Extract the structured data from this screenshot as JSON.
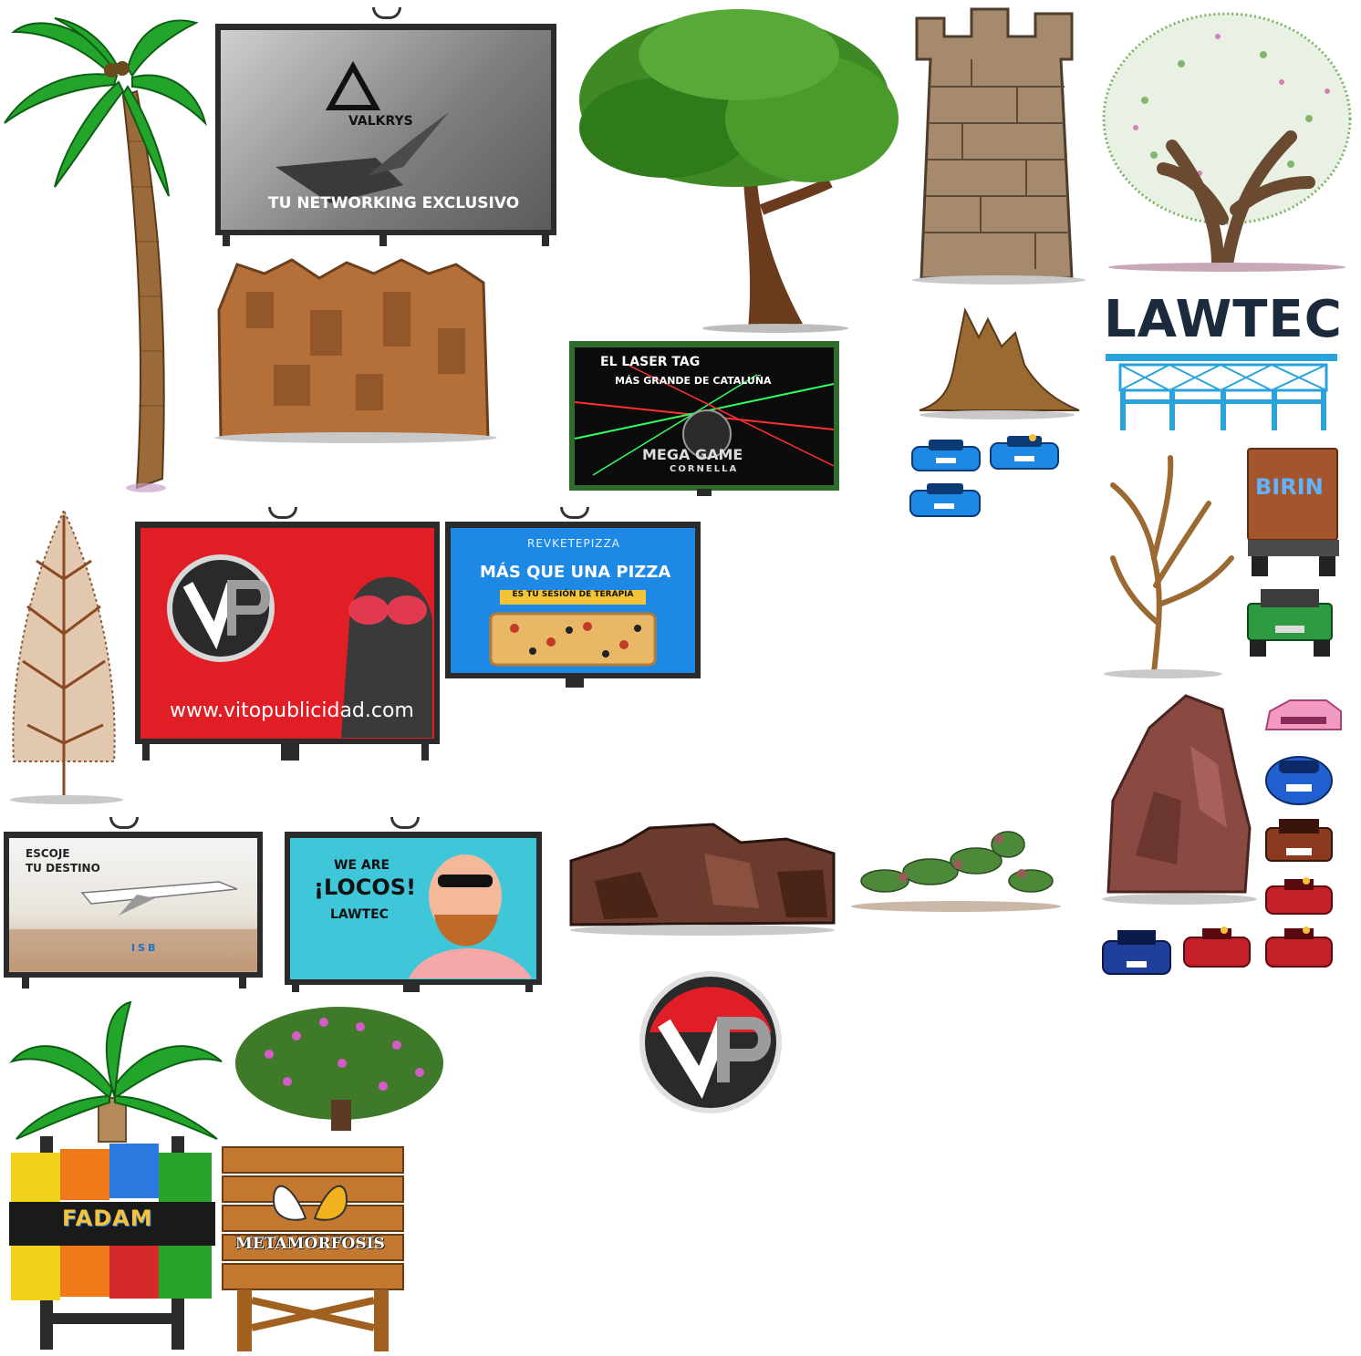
{
  "billboards": {
    "valkrys": {
      "brand": "VALKRYS",
      "tagline": "TU NETWORKING EXCLUSIVO"
    },
    "laser_tag": {
      "line1": "EL LASER TAG",
      "line2": "MÁS GRANDE DE CATALUÑA",
      "brand": "MEGA GAME",
      "city": "CORNELLA"
    },
    "vito": {
      "logo": "VP",
      "url": "www.vitopublicidad.com"
    },
    "pizza": {
      "brand": "REVKETEPIZZA",
      "headline": "MÁS QUE UNA PIZZA",
      "strip": "ES TU SESIÓN DE TERAPIA"
    },
    "destino": {
      "line1": "ESCOJE",
      "line2": "TU DESTINO",
      "brand": "ISB"
    },
    "locos": {
      "line1": "WE ARE",
      "line2": "¡LOCOS!",
      "line3": "LAWTEC"
    }
  },
  "signs": {
    "lawtec": "LAWTEC",
    "birin": "BIRIN",
    "vp_logo": "VP",
    "fadam": "FADAM",
    "metamorfosis": "METAMORFOSIS"
  },
  "colors": {
    "leaf": "#2e8b22",
    "trunk": "#7a4a24",
    "rock": "#6b3b2d",
    "vp_red": "#e11d25",
    "sky_blue": "#1e88e5",
    "lawtec_blue": "#2aa3dd"
  }
}
